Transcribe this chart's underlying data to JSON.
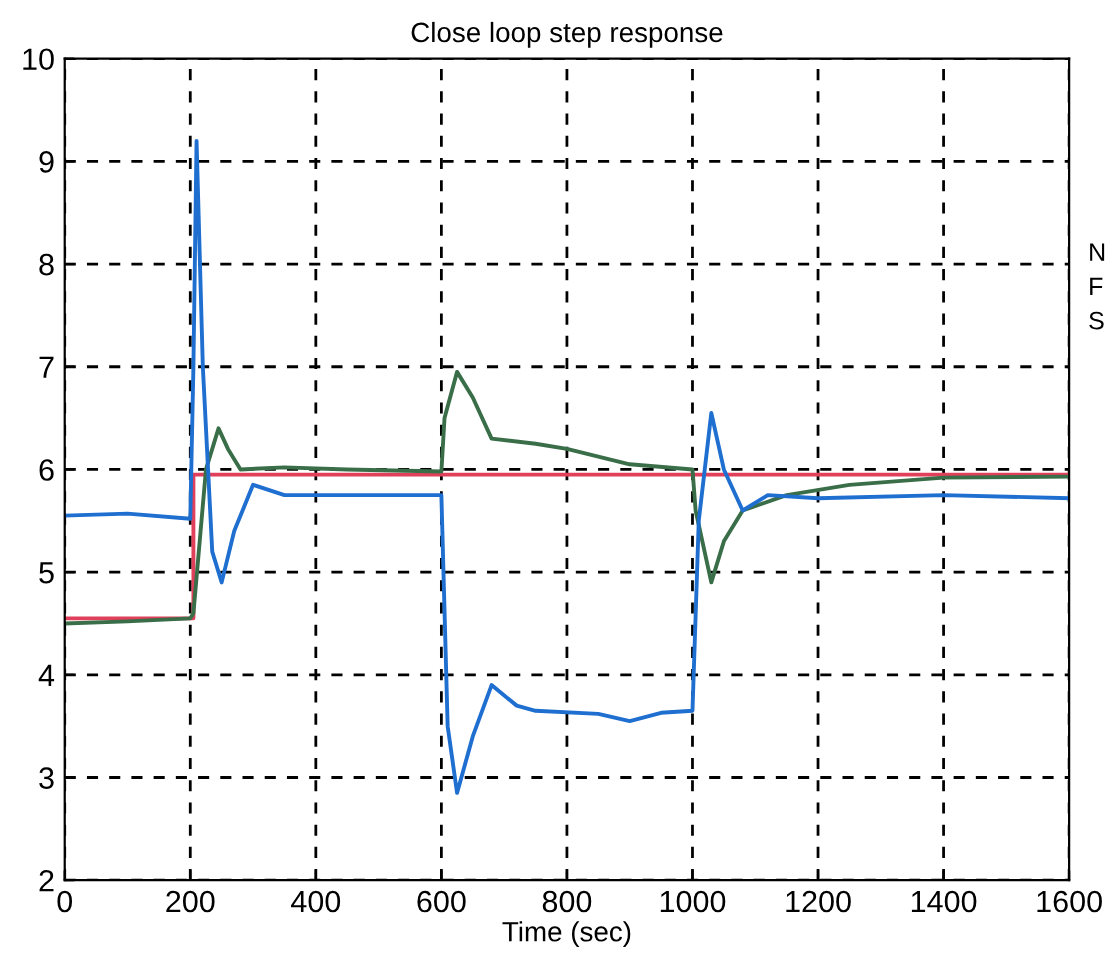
{
  "chart_data": {
    "type": "line",
    "title": "Close loop step response",
    "xlabel": "Time (sec)",
    "xlim": [
      0,
      1600
    ],
    "xticks": [
      0,
      200,
      400,
      600,
      800,
      1000,
      1200,
      1400,
      1600
    ],
    "ylim": [
      2,
      10
    ],
    "yticks": [
      2,
      3,
      4,
      5,
      6,
      7,
      8,
      9,
      10
    ],
    "grid": true,
    "line_style": "solid",
    "marker": "none",
    "series": [
      {
        "color": "#e0405a",
        "x": [
          0,
          205,
          205,
          1600
        ],
        "values": [
          4.55,
          4.55,
          5.95,
          5.95
        ]
      },
      {
        "color": "#3a6e48",
        "x": [
          0,
          100,
          200,
          205,
          225,
          245,
          260,
          280,
          350,
          450,
          600,
          605,
          625,
          650,
          680,
          750,
          800,
          900,
          1000,
          1005,
          1030,
          1050,
          1080,
          1150,
          1250,
          1400,
          1600
        ],
        "values": [
          4.5,
          4.52,
          4.55,
          4.6,
          6.0,
          6.4,
          6.2,
          6.0,
          6.02,
          6.0,
          5.98,
          6.5,
          6.95,
          6.7,
          6.3,
          6.25,
          6.2,
          6.05,
          6.0,
          5.6,
          4.9,
          5.3,
          5.6,
          5.75,
          5.85,
          5.92,
          5.93
        ]
      },
      {
        "color": "#1f6fd0",
        "x": [
          0,
          100,
          200,
          205,
          210,
          220,
          235,
          250,
          270,
          300,
          350,
          450,
          600,
          610,
          625,
          650,
          680,
          720,
          750,
          850,
          900,
          950,
          1000,
          1010,
          1030,
          1050,
          1080,
          1120,
          1200,
          1400,
          1600
        ],
        "values": [
          5.55,
          5.57,
          5.52,
          7.0,
          9.2,
          7.0,
          5.2,
          4.9,
          5.4,
          5.85,
          5.75,
          5.75,
          5.75,
          3.5,
          2.85,
          3.4,
          3.9,
          3.7,
          3.65,
          3.62,
          3.55,
          3.63,
          3.65,
          5.5,
          6.55,
          6.0,
          5.6,
          5.75,
          5.72,
          5.75,
          5.72
        ]
      }
    ],
    "annotations": [
      "N",
      "F",
      "S"
    ]
  }
}
